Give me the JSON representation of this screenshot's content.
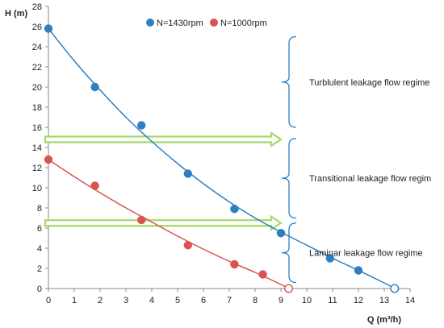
{
  "chart_data": {
    "type": "scatter",
    "xlabel": "Q (m³/h)",
    "ylabel": "H (m)",
    "xlim": [
      0,
      14
    ],
    "ylim": [
      0,
      28
    ],
    "xticks": [
      0,
      1,
      2,
      3,
      4,
      5,
      6,
      7,
      8,
      9,
      10,
      11,
      12,
      13,
      14
    ],
    "yticks": [
      0,
      2,
      4,
      6,
      8,
      10,
      12,
      14,
      16,
      18,
      20,
      22,
      24,
      26,
      28
    ],
    "grid": false,
    "legend": "top-center",
    "series": [
      {
        "name": "N=1430rpm",
        "color": "#2e7fc2",
        "points": [
          {
            "x": 0,
            "y": 25.8
          },
          {
            "x": 1.8,
            "y": 20.0
          },
          {
            "x": 3.6,
            "y": 16.2
          },
          {
            "x": 5.4,
            "y": 11.4
          },
          {
            "x": 7.2,
            "y": 7.9
          },
          {
            "x": 9.0,
            "y": 5.5
          },
          {
            "x": 10.9,
            "y": 3.0
          },
          {
            "x": 12.0,
            "y": 1.8
          }
        ],
        "open_points": [
          {
            "x": 13.4,
            "y": 0
          }
        ],
        "curve": [
          {
            "x": 0,
            "y": 25.8
          },
          {
            "x": 1,
            "y": 22.6
          },
          {
            "x": 2,
            "y": 19.7
          },
          {
            "x": 3,
            "y": 17.0
          },
          {
            "x": 4,
            "y": 14.6
          },
          {
            "x": 5,
            "y": 12.4
          },
          {
            "x": 6,
            "y": 10.4
          },
          {
            "x": 7,
            "y": 8.6
          },
          {
            "x": 8,
            "y": 7.0
          },
          {
            "x": 9,
            "y": 5.6
          },
          {
            "x": 10,
            "y": 4.3
          },
          {
            "x": 11,
            "y": 3.0
          },
          {
            "x": 12,
            "y": 1.8
          },
          {
            "x": 13,
            "y": 0.55
          },
          {
            "x": 13.4,
            "y": 0
          }
        ]
      },
      {
        "name": "N=1000rpm",
        "color": "#d9534f",
        "points": [
          {
            "x": 0,
            "y": 12.8
          },
          {
            "x": 1.8,
            "y": 10.2
          },
          {
            "x": 3.6,
            "y": 6.8
          },
          {
            "x": 5.4,
            "y": 4.3
          },
          {
            "x": 7.2,
            "y": 2.4
          },
          {
            "x": 8.3,
            "y": 1.4
          }
        ],
        "open_points": [
          {
            "x": 9.3,
            "y": 0
          }
        ],
        "curve": [
          {
            "x": 0,
            "y": 12.8
          },
          {
            "x": 1,
            "y": 11.1
          },
          {
            "x": 2,
            "y": 9.5
          },
          {
            "x": 3,
            "y": 8.0
          },
          {
            "x": 4,
            "y": 6.6
          },
          {
            "x": 5,
            "y": 5.2
          },
          {
            "x": 6,
            "y": 3.9
          },
          {
            "x": 7,
            "y": 2.7
          },
          {
            "x": 8,
            "y": 1.6
          },
          {
            "x": 9,
            "y": 0.4
          },
          {
            "x": 9.3,
            "y": 0
          }
        ]
      }
    ],
    "arrows": [
      {
        "y": 14.8,
        "x_start": 0,
        "x_end": 9.0,
        "color": "#a6d86a"
      },
      {
        "y": 6.5,
        "x_start": 0,
        "x_end": 9.0,
        "color": "#a6d86a"
      }
    ],
    "regimes": [
      {
        "label": "Turblulent leakage flow regime",
        "y_top": 25.0,
        "y_bottom": 16.0
      },
      {
        "label": "Transitional leakage flow regim",
        "y_top": 14.9,
        "y_bottom": 7.0
      },
      {
        "label": "Laminar leakage flow regime",
        "y_top": 6.5,
        "y_bottom": 0.6
      }
    ]
  }
}
